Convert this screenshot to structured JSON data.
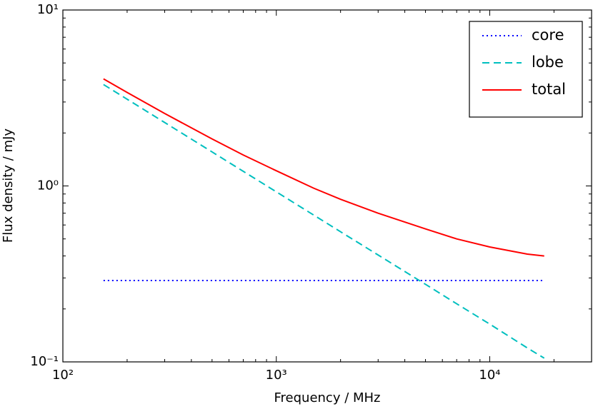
{
  "chart_data": {
    "type": "line",
    "xlabel": "Frequency / MHz",
    "ylabel": "Flux density / mJy",
    "x": [
      155,
      200,
      300,
      500,
      700,
      1000,
      1500,
      2000,
      3000,
      5000,
      7000,
      10000,
      15000,
      18000
    ],
    "series": [
      {
        "name": "core",
        "color": "#0000ff",
        "linestyle": "dotted",
        "values": [
          0.29,
          0.29,
          0.29,
          0.29,
          0.29,
          0.29,
          0.29,
          0.29,
          0.29,
          0.29,
          0.29,
          0.29,
          0.29,
          0.29
        ]
      },
      {
        "name": "lobe",
        "color": "#00bfbf",
        "linestyle": "dashed",
        "values": [
          3.77,
          3.112,
          2.293,
          1.561,
          1.211,
          0.926,
          0.682,
          0.549,
          0.405,
          0.276,
          0.214,
          0.164,
          0.12,
          0.105
        ]
      },
      {
        "name": "total",
        "color": "#ff0000",
        "linestyle": "solid",
        "values": [
          4.06,
          3.4,
          2.58,
          1.85,
          1.5,
          1.22,
          0.97,
          0.84,
          0.7,
          0.57,
          0.5,
          0.45,
          0.41,
          0.4
        ]
      }
    ],
    "xlim": [
      100,
      30000
    ],
    "ylim": [
      0.1,
      10
    ],
    "xticks": [
      {
        "value": 100,
        "label": "10²"
      },
      {
        "value": 1000,
        "label": "10³"
      },
      {
        "value": 10000,
        "label": "10⁴"
      }
    ],
    "yticks": [
      {
        "value": 0.1,
        "label": "10⁻¹"
      },
      {
        "value": 1,
        "label": "10⁰"
      },
      {
        "value": 10,
        "label": "10¹"
      }
    ],
    "xscale": "log",
    "yscale": "log",
    "grid": false,
    "legend": "upper right"
  }
}
